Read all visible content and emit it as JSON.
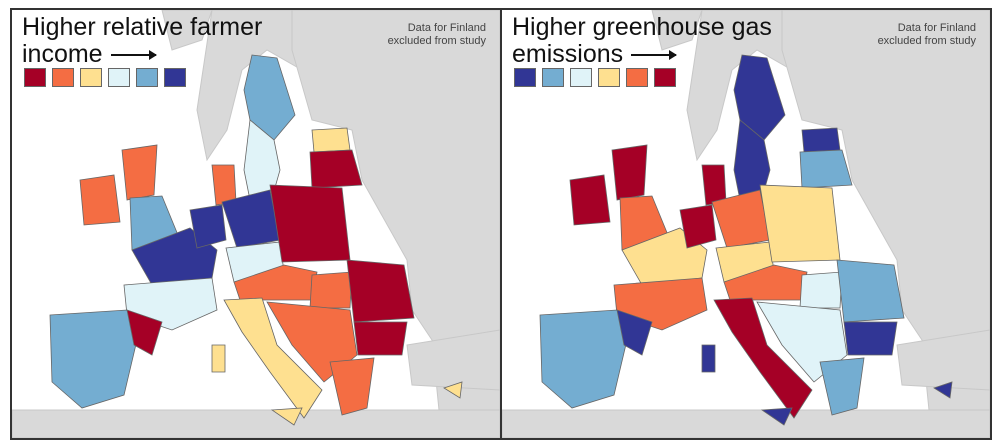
{
  "colors": [
    "#a50026",
    "#f46d43",
    "#fee090",
    "#e0f3f8",
    "#74add1",
    "#313695"
  ],
  "land_color": "#d9d9d9",
  "maps": [
    {
      "title_line1": "Higher relative farmer",
      "title_line2": "income",
      "note_line1": "Data for Finland",
      "note_line2": "excluded from study",
      "legend": [
        0,
        1,
        2,
        3,
        4,
        5
      ],
      "regions": {
        "sweden_n": 4,
        "sweden_s": 3,
        "estonia": 2,
        "baltics": 0,
        "scotland": 1,
        "england": 4,
        "ireland": 1,
        "france_n": 5,
        "france_s": 3,
        "iberia": 4,
        "iberia_ne": 0,
        "benelux": 5,
        "denmark": 1,
        "germany": 5,
        "germany_s": 3,
        "poland": 0,
        "czech_austria": 1,
        "italy": 2,
        "sardinia": 2,
        "sicily": 2,
        "hungary": 1,
        "romania": 0,
        "balkans": 1,
        "bulgaria": 0,
        "greece": 1,
        "cyprus": 2
      }
    },
    {
      "title_line1": "Higher greenhouse gas",
      "title_line2": "emissions",
      "note_line1": "Data for Finland",
      "note_line2": "excluded from study",
      "legend": [
        5,
        4,
        3,
        2,
        1,
        0
      ],
      "regions": {
        "sweden_n": 5,
        "sweden_s": 5,
        "estonia": 5,
        "baltics": 4,
        "scotland": 0,
        "england": 1,
        "ireland": 0,
        "france_n": 2,
        "france_s": 1,
        "iberia": 4,
        "iberia_ne": 5,
        "benelux": 0,
        "denmark": 0,
        "germany": 1,
        "germany_s": 2,
        "poland": 2,
        "czech_austria": 1,
        "italy": 0,
        "sardinia": 5,
        "sicily": 5,
        "hungary": 3,
        "romania": 4,
        "balkans": 3,
        "bulgaria": 5,
        "greece": 4,
        "cyprus": 5
      }
    }
  ]
}
